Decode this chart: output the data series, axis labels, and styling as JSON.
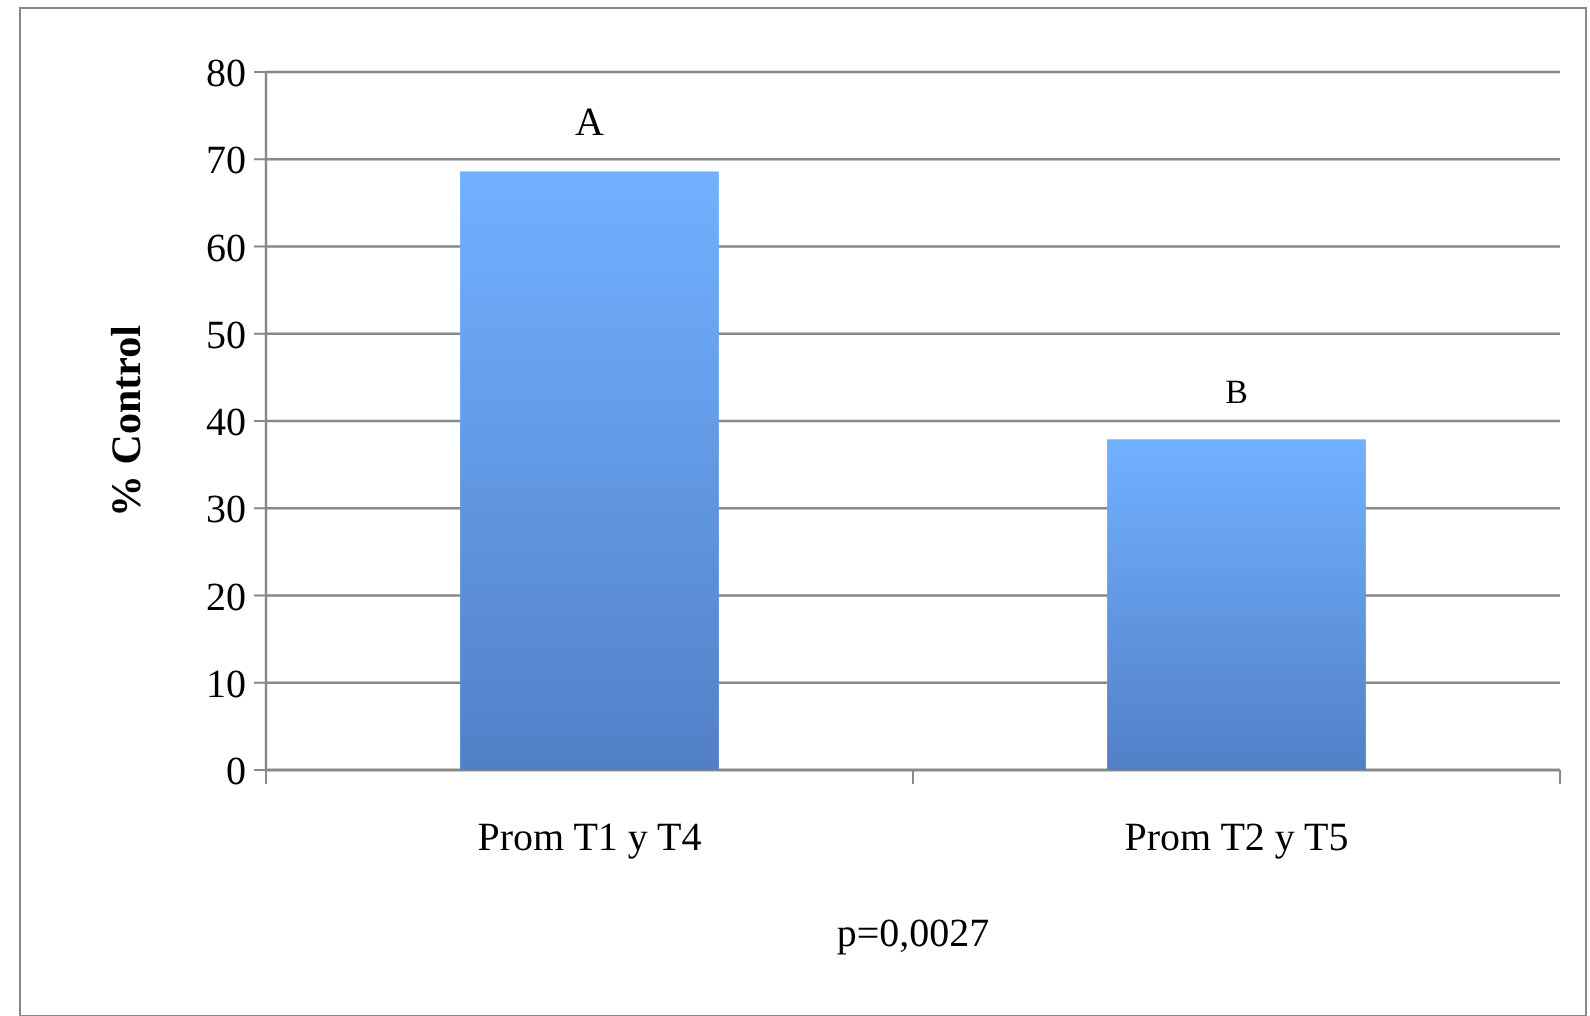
{
  "chart_data": {
    "type": "bar",
    "ylabel": "% Control",
    "categories": [
      "Prom T1 y T4",
      "Prom T2 y T5"
    ],
    "values": [
      68.6,
      37.9
    ],
    "color": "#5b8fde",
    "ylim": [
      0,
      80
    ],
    "yticks": [
      0,
      10,
      20,
      30,
      40,
      50,
      60,
      70,
      80
    ],
    "grid": "y",
    "annotations": [
      {
        "text": "A",
        "x": "Prom T1 y T4",
        "y": 68.6
      },
      {
        "text": "B",
        "x": "Prom T2 y T5",
        "y": 37.9
      },
      "p=0,0027"
    ]
  }
}
